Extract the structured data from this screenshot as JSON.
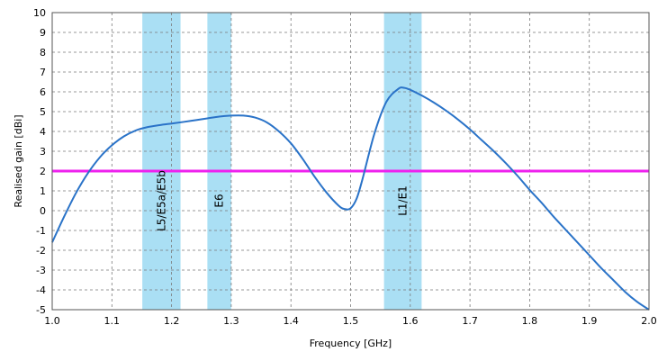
{
  "chart_data": {
    "type": "line",
    "title": "",
    "xlabel": "Frequency [GHz]",
    "ylabel": "Realised gain [dBi]",
    "xlim": [
      1.0,
      2.0
    ],
    "ylim": [
      -5,
      10
    ],
    "x_ticks": [
      "1.0",
      "1.1",
      "1.2",
      "1.3",
      "1.4",
      "1.5",
      "1.6",
      "1.7",
      "1.8",
      "1.9",
      "2.0"
    ],
    "y_ticks": [
      "-5",
      "-4",
      "-3",
      "-2",
      "-1",
      "0",
      "1",
      "2",
      "3",
      "4",
      "5",
      "6",
      "7",
      "8",
      "9",
      "10"
    ],
    "grid": true,
    "bands": [
      {
        "label": "L5/E5a/E5b",
        "x_start": 1.151,
        "x_end": 1.215
      },
      {
        "label": "E6",
        "x_start": 1.26,
        "x_end": 1.3
      },
      {
        "label": "L1/E1",
        "x_start": 1.556,
        "x_end": 1.619
      }
    ],
    "threshold": {
      "y": 2.0,
      "color": "#ee22ee"
    },
    "band_color": "#aadff4",
    "series": [
      {
        "color": "#2a73c8",
        "x": [
          1.0,
          1.02,
          1.04,
          1.06,
          1.08,
          1.1,
          1.12,
          1.14,
          1.16,
          1.18,
          1.2,
          1.22,
          1.24,
          1.26,
          1.28,
          1.3,
          1.32,
          1.34,
          1.36,
          1.38,
          1.4,
          1.42,
          1.44,
          1.46,
          1.48,
          1.49,
          1.5,
          1.51,
          1.52,
          1.54,
          1.56,
          1.58,
          1.59,
          1.6,
          1.62,
          1.64,
          1.66,
          1.68,
          1.7,
          1.72,
          1.74,
          1.76,
          1.78,
          1.8,
          1.82,
          1.84,
          1.86,
          1.88,
          1.9,
          1.92,
          1.94,
          1.96,
          1.98,
          2.0
        ],
        "values": [
          -1.6,
          -0.3,
          0.9,
          1.9,
          2.7,
          3.3,
          3.75,
          4.05,
          4.22,
          4.32,
          4.4,
          4.48,
          4.57,
          4.66,
          4.75,
          4.8,
          4.8,
          4.7,
          4.45,
          4.0,
          3.4,
          2.6,
          1.7,
          0.9,
          0.25,
          0.08,
          0.12,
          0.6,
          1.6,
          3.9,
          5.5,
          6.15,
          6.2,
          6.1,
          5.8,
          5.45,
          5.05,
          4.6,
          4.1,
          3.55,
          3.0,
          2.4,
          1.75,
          1.05,
          0.4,
          -0.3,
          -0.95,
          -1.6,
          -2.25,
          -2.9,
          -3.5,
          -4.1,
          -4.6,
          -5.0
        ]
      }
    ]
  }
}
